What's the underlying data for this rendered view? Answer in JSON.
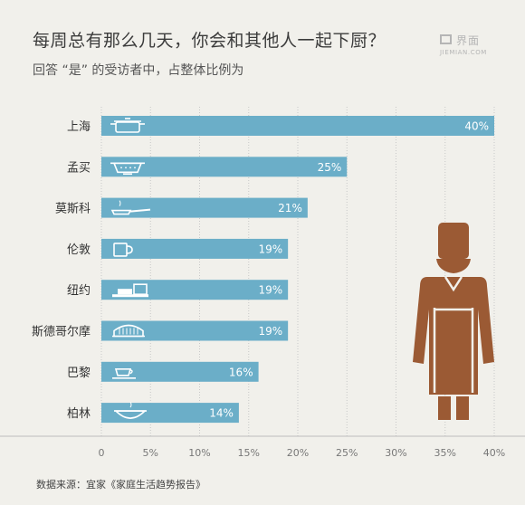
{
  "header": {
    "title": "每周总有那么几天，你会和其他人一起下厨？",
    "subtitle": "回答 “是” 的受访者中，占整体比例为"
  },
  "logo": {
    "cn": "界面",
    "en": "JIEMIAN.COM"
  },
  "source": "数据来源：宜家《家庭生活趋势报告》",
  "colors": {
    "bar": "#6baec8",
    "bar_text": "#ffffff",
    "chef": "#9b5a34",
    "grid": "#c8c8c8",
    "axis_text": "#777777"
  },
  "chart_data": {
    "type": "bar",
    "orientation": "horizontal",
    "categories": [
      "上海",
      "孟买",
      "莫斯科",
      "伦敦",
      "纽约",
      "斯德哥尔摩",
      "巴黎",
      "柏林"
    ],
    "values": [
      40,
      25,
      21,
      19,
      19,
      19,
      16,
      14
    ],
    "value_labels": [
      "40%",
      "25%",
      "21%",
      "19%",
      "19%",
      "19%",
      "16%",
      "14%"
    ],
    "icons": [
      "pot-icon",
      "colander-icon",
      "frying-pan-icon",
      "mug-icon",
      "dishes-icon",
      "casserole-icon",
      "teacup-icon",
      "bowl-icon"
    ],
    "xlim": [
      0,
      40
    ],
    "xticks": [
      0,
      5,
      10,
      15,
      20,
      25,
      30,
      35,
      40
    ],
    "xtick_labels": [
      "0",
      "5%",
      "10%",
      "15%",
      "20%",
      "25%",
      "30%",
      "35%",
      "40%"
    ],
    "grid": true,
    "xlabel": "",
    "ylabel": ""
  }
}
